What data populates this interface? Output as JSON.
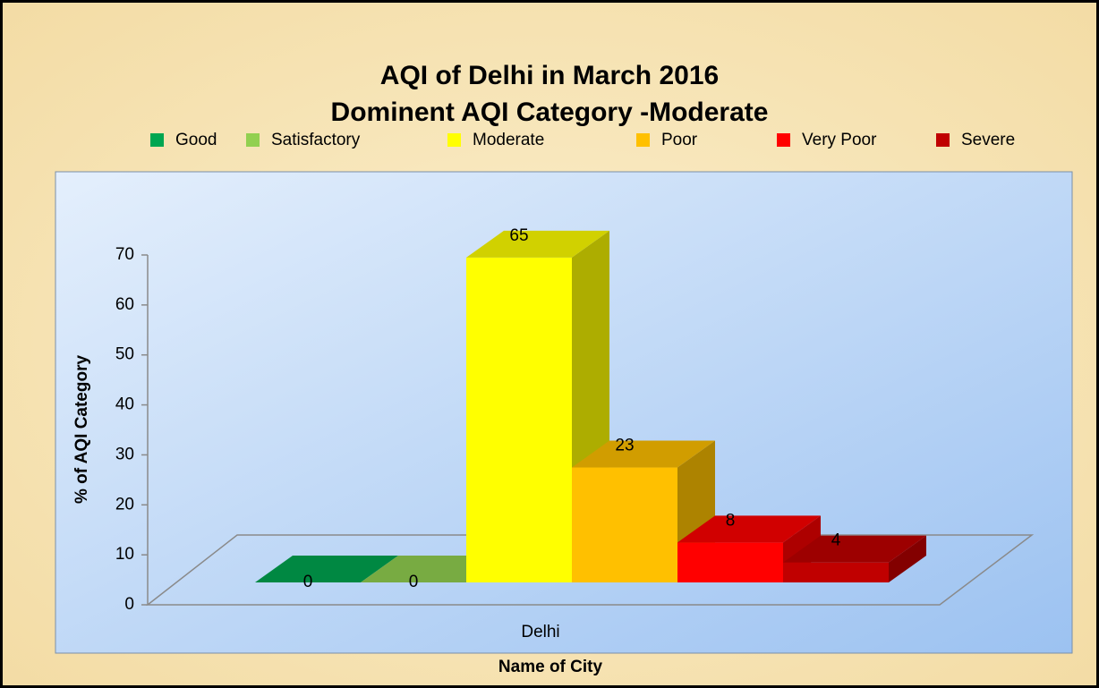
{
  "chart_data": {
    "type": "bar3d",
    "title": [
      "AQI of Delhi in March 2016",
      "Dominent AQI Category -Moderate"
    ],
    "categories": [
      "Delhi"
    ],
    "series": [
      {
        "name": "Good",
        "color": "#00a651",
        "values": [
          0
        ]
      },
      {
        "name": "Satisfactory",
        "color": "#92d050",
        "values": [
          0
        ]
      },
      {
        "name": "Moderate",
        "color": "#ffff00",
        "values": [
          65
        ]
      },
      {
        "name": "Poor",
        "color": "#ffc000",
        "values": [
          23
        ]
      },
      {
        "name": "Very Poor",
        "color": "#ff0000",
        "values": [
          8
        ]
      },
      {
        "name": "Severe",
        "color": "#c00000",
        "values": [
          4
        ]
      }
    ],
    "xlabel": "Name of City",
    "ylabel": "% of AQI Category",
    "ylim": [
      0,
      70
    ],
    "yticks": [
      0,
      10,
      20,
      30,
      40,
      50,
      60,
      70
    ],
    "legend": "top",
    "grid": false
  }
}
